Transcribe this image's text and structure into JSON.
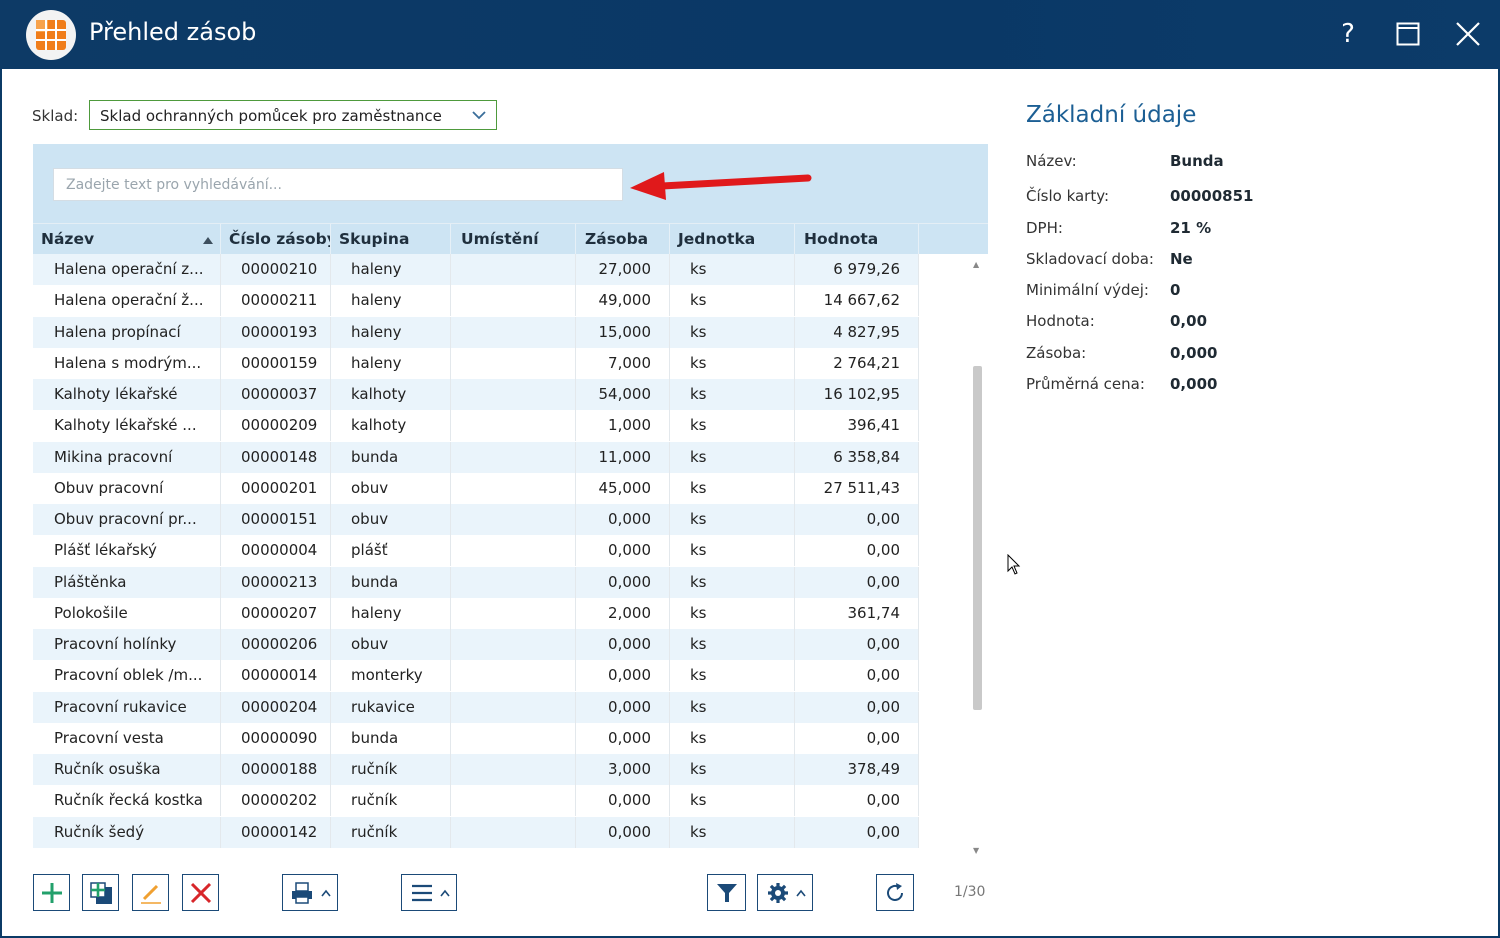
{
  "window": {
    "title": "Přehled zásob",
    "help_label": "?"
  },
  "warehouse": {
    "label": "Sklad:",
    "selected": "Sklad ochranných pomůcek pro zaměstnance"
  },
  "search": {
    "placeholder": "Zadejte text pro vyhledávání..."
  },
  "table": {
    "columns": [
      "Název",
      "Číslo zásoby",
      "Skupina",
      "Umístění",
      "Zásoba",
      "Jednotka",
      "Hodnota"
    ],
    "rows": [
      [
        "Halena operační z...",
        "00000210",
        "haleny",
        "",
        "27,000",
        "ks",
        "6 979,26"
      ],
      [
        "Halena operační ž...",
        "00000211",
        "haleny",
        "",
        "49,000",
        "ks",
        "14 667,62"
      ],
      [
        "Halena propínací",
        "00000193",
        "haleny",
        "",
        "15,000",
        "ks",
        "4 827,95"
      ],
      [
        "Halena s modrým...",
        "00000159",
        "haleny",
        "",
        "7,000",
        "ks",
        "2 764,21"
      ],
      [
        "Kalhoty lékařské",
        "00000037",
        "kalhoty",
        "",
        "54,000",
        "ks",
        "16 102,95"
      ],
      [
        "Kalhoty lékařské ...",
        "00000209",
        "kalhoty",
        "",
        "1,000",
        "ks",
        "396,41"
      ],
      [
        "Mikina pracovní",
        "00000148",
        "bunda",
        "",
        "11,000",
        "ks",
        "6 358,84"
      ],
      [
        "Obuv pracovní",
        "00000201",
        "obuv",
        "",
        "45,000",
        "ks",
        "27 511,43"
      ],
      [
        "Obuv pracovní pr...",
        "00000151",
        "obuv",
        "",
        "0,000",
        "ks",
        "0,00"
      ],
      [
        "Plášť lékařský",
        "00000004",
        "plášť",
        "",
        "0,000",
        "ks",
        "0,00"
      ],
      [
        "Pláštěnka",
        "00000213",
        "bunda",
        "",
        "0,000",
        "ks",
        "0,00"
      ],
      [
        "Polokošile",
        "00000207",
        "haleny",
        "",
        "2,000",
        "ks",
        "361,74"
      ],
      [
        "Pracovní holínky",
        "00000206",
        "obuv",
        "",
        "0,000",
        "ks",
        "0,00"
      ],
      [
        "Pracovní oblek /m...",
        "00000014",
        "monterky",
        "",
        "0,000",
        "ks",
        "0,00"
      ],
      [
        "Pracovní rukavice",
        "00000204",
        "rukavice",
        "",
        "0,000",
        "ks",
        "0,00"
      ],
      [
        "Pracovní vesta",
        "00000090",
        "bunda",
        "",
        "0,000",
        "ks",
        "0,00"
      ],
      [
        "Ručník osuška",
        "00000188",
        "ručník",
        "",
        "3,000",
        "ks",
        "378,49"
      ],
      [
        "Ručník řecká kostka",
        "00000202",
        "ručník",
        "",
        "0,000",
        "ks",
        "0,00"
      ],
      [
        "Ručník šedý",
        "00000142",
        "ručník",
        "",
        "0,000",
        "ks",
        "0,00"
      ]
    ]
  },
  "pager": {
    "text": "1/30"
  },
  "details": {
    "title": "Základní údaje",
    "fields": [
      {
        "label": "Název:",
        "value": "Bunda"
      },
      {
        "label": "Číslo karty:",
        "value": "00000851"
      },
      {
        "label": "DPH:",
        "value": "21 %"
      },
      {
        "label": "Skladovací doba:",
        "value": "Ne"
      },
      {
        "label": "Minimální výdej:",
        "value": "0"
      },
      {
        "label": "Hodnota:",
        "value": "0,00"
      },
      {
        "label": "Zásoba:",
        "value": "0,000"
      },
      {
        "label": "Průměrná cena:",
        "value": "0,000"
      }
    ]
  },
  "colors": {
    "titlebar": "#0b3a66",
    "accent": "#1c5f94",
    "grid_header": "#cde4f3",
    "row_alt": "#eaf4fb",
    "select_border": "#4e9a3c",
    "arrow": "#e0191b"
  }
}
